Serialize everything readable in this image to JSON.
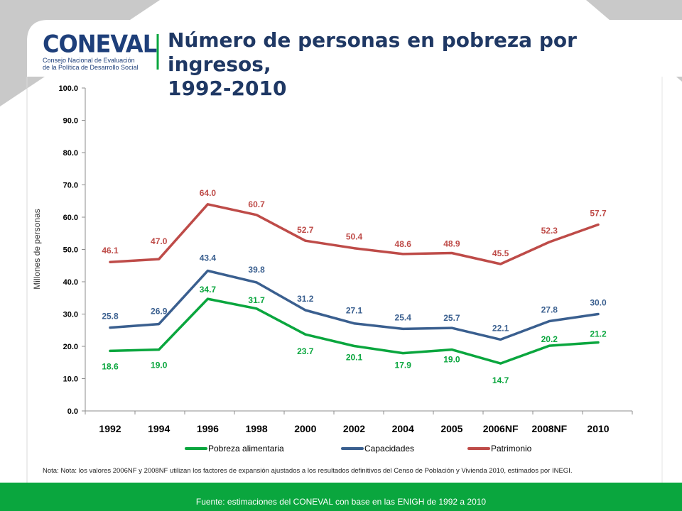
{
  "header": {
    "logo": {
      "wordmark": "CONEVAL",
      "tagline_line1": "Consejo Nacional de Evaluación",
      "tagline_line2": "de la Política de Desarrollo Social"
    },
    "title_line1": "Número de personas en pobreza por ingresos,",
    "title_line2": "1992-2010"
  },
  "chart_data": {
    "type": "line",
    "title": "Número de personas en pobreza por ingresos, 1992-2010",
    "xlabel": "",
    "ylabel": "Millones  de personas",
    "categories": [
      "1992",
      "1994",
      "1996",
      "1998",
      "2000",
      "2002",
      "2004",
      "2005",
      "2006NF",
      "2008NF",
      "2010"
    ],
    "ylim": [
      0,
      100
    ],
    "yticks": [
      "0.0",
      "10.0",
      "20.0",
      "30.0",
      "40.0",
      "50.0",
      "60.0",
      "70.0",
      "80.0",
      "90.0",
      "100.0"
    ],
    "grid": false,
    "legend_position": "bottom",
    "series": [
      {
        "name": "Pobreza alimentaria",
        "color": "#0aa63e",
        "values": [
          18.6,
          19.0,
          34.7,
          31.7,
          23.7,
          20.1,
          17.9,
          19.0,
          14.7,
          20.2,
          21.2
        ]
      },
      {
        "name": "Capacidades",
        "color": "#3a5f8f",
        "values": [
          25.8,
          26.9,
          43.4,
          39.8,
          31.2,
          27.1,
          25.4,
          25.7,
          22.1,
          27.8,
          30.0
        ]
      },
      {
        "name": "Patrimonio",
        "color": "#be4b48",
        "values": [
          46.1,
          47.0,
          64.0,
          60.7,
          52.7,
          50.4,
          48.6,
          48.9,
          45.5,
          52.3,
          57.7
        ]
      }
    ]
  },
  "note": "Nota: Nota: los valores 2006NF y 2008NF utilizan los factores de expansión ajustados a los resultados definitivos del Censo de Población y Vivienda 2010, estimados por INEGI.",
  "footer": "Fuente: estimaciones del CONEVAL con base en las ENIGH de 1992 a 2010"
}
